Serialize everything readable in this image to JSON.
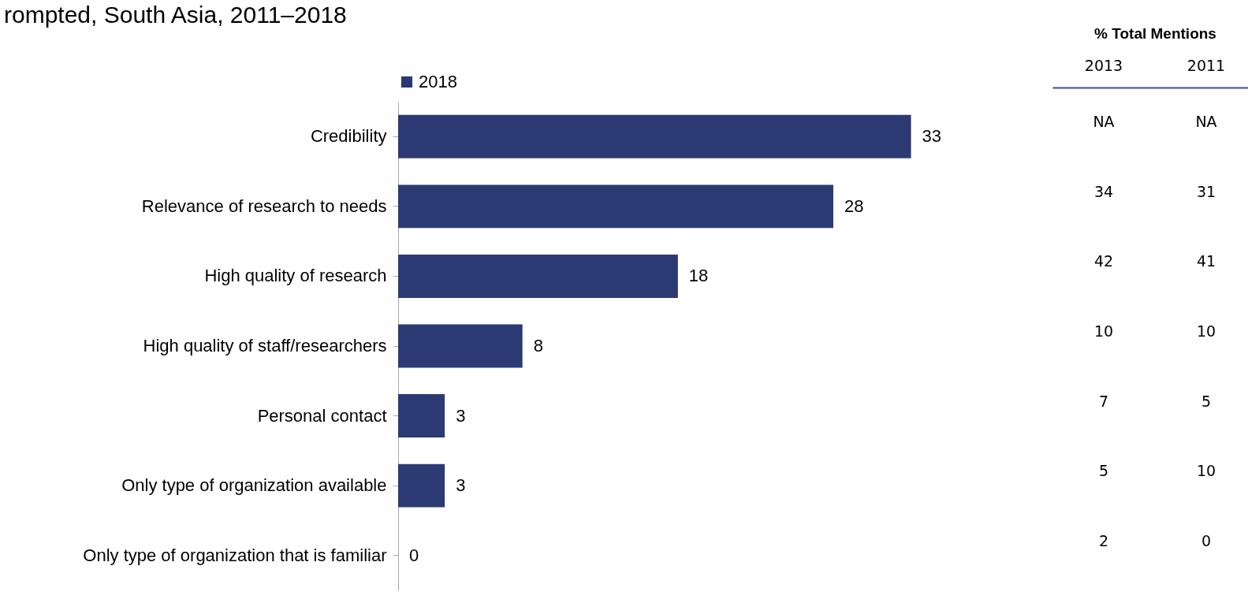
{
  "chart_data": [
    {
      "type": "bar",
      "orientation": "horizontal",
      "title": "rompted, South Asia, 2011–2018",
      "categories": [
        "Credibility",
        "Relevance of research to needs",
        "High quality of research",
        "High quality of staff/researchers",
        "Personal contact",
        "Only type of organization available",
        "Only type of organization that is familiar"
      ],
      "series": [
        {
          "name": "2018",
          "color": "#2b3a73",
          "values": [
            33,
            28,
            18,
            8,
            3,
            3,
            0
          ]
        }
      ],
      "data_labels": true,
      "legend": "top",
      "tick_labels": "y"
    },
    {
      "type": "other",
      "title": "% Total Mentions",
      "categories": [
        "2013",
        "2011"
      ],
      "annotations": [
        "NA",
        "NA",
        "34",
        "31",
        "42",
        "41",
        "10",
        "10",
        "7",
        "5",
        "5",
        "10",
        "2",
        "0"
      ]
    }
  ]
}
